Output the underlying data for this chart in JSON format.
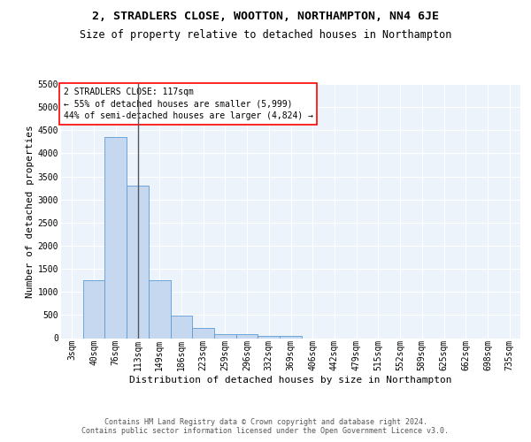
{
  "title": "2, STRADLERS CLOSE, WOOTTON, NORTHAMPTON, NN4 6JE",
  "subtitle": "Size of property relative to detached houses in Northampton",
  "xlabel": "Distribution of detached houses by size in Northampton",
  "ylabel": "Number of detached properties",
  "categories": [
    "3sqm",
    "40sqm",
    "76sqm",
    "113sqm",
    "149sqm",
    "186sqm",
    "223sqm",
    "259sqm",
    "296sqm",
    "332sqm",
    "369sqm",
    "406sqm",
    "442sqm",
    "479sqm",
    "515sqm",
    "552sqm",
    "589sqm",
    "625sqm",
    "662sqm",
    "698sqm",
    "735sqm"
  ],
  "values": [
    0,
    1250,
    4350,
    3300,
    1250,
    480,
    220,
    90,
    80,
    55,
    50,
    0,
    0,
    0,
    0,
    0,
    0,
    0,
    0,
    0,
    0
  ],
  "bar_color": "#c5d8f0",
  "bar_edge_color": "#5b9bd5",
  "vline_x": 3,
  "vline_color": "#555555",
  "annotation_line1": "2 STRADLERS CLOSE: 117sqm",
  "annotation_line2": "← 55% of detached houses are smaller (5,999)",
  "annotation_line3": "44% of semi-detached houses are larger (4,824) →",
  "annotation_box_facecolor": "white",
  "annotation_box_edgecolor": "red",
  "ylim": [
    0,
    5500
  ],
  "yticks": [
    0,
    500,
    1000,
    1500,
    2000,
    2500,
    3000,
    3500,
    4000,
    4500,
    5000,
    5500
  ],
  "footer_line1": "Contains HM Land Registry data © Crown copyright and database right 2024.",
  "footer_line2": "Contains public sector information licensed under the Open Government Licence v3.0.",
  "background_color": "#edf3fb",
  "grid_color": "white",
  "title_fontsize": 9.5,
  "subtitle_fontsize": 8.5,
  "ylabel_fontsize": 8,
  "xlabel_fontsize": 8,
  "tick_fontsize": 7,
  "annotation_fontsize": 7,
  "footer_fontsize": 6
}
